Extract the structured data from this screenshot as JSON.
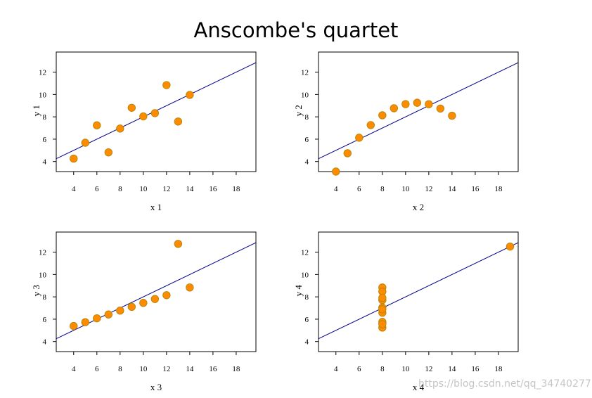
{
  "title": "Anscombe's quartet",
  "watermark": "https://blog.csdn.net/qq_34740277",
  "colors": {
    "point_fill": "#ff8c00",
    "point_stroke": "#b8860b",
    "line": "#00008b",
    "axes": "#000000"
  },
  "chart_data": [
    {
      "type": "scatter",
      "xlabel": "x 1",
      "ylabel": "y 1",
      "xlim": [
        2.5,
        19.7
      ],
      "ylim": [
        3.1,
        13.8
      ],
      "xticks": [
        4,
        6,
        8,
        10,
        12,
        14,
        16,
        18
      ],
      "yticks": [
        4,
        6,
        8,
        10,
        12
      ],
      "x": [
        10,
        8,
        13,
        9,
        11,
        14,
        6,
        4,
        12,
        7,
        5
      ],
      "y": [
        8.04,
        6.95,
        7.58,
        8.81,
        8.33,
        9.96,
        7.24,
        4.26,
        10.84,
        4.82,
        5.68
      ],
      "fit": {
        "intercept": 3.0,
        "slope": 0.5
      }
    },
    {
      "type": "scatter",
      "xlabel": "x 2",
      "ylabel": "y 2",
      "xlim": [
        2.5,
        19.7
      ],
      "ylim": [
        3.1,
        13.8
      ],
      "xticks": [
        4,
        6,
        8,
        10,
        12,
        14,
        16,
        18
      ],
      "yticks": [
        4,
        6,
        8,
        10,
        12
      ],
      "x": [
        10,
        8,
        13,
        9,
        11,
        14,
        6,
        4,
        12,
        7,
        5
      ],
      "y": [
        9.14,
        8.14,
        8.74,
        8.77,
        9.26,
        8.1,
        6.13,
        3.1,
        9.13,
        7.26,
        4.74
      ],
      "fit": {
        "intercept": 3.0,
        "slope": 0.5
      }
    },
    {
      "type": "scatter",
      "xlabel": "x 3",
      "ylabel": "y 3",
      "xlim": [
        2.5,
        19.7
      ],
      "ylim": [
        3.1,
        13.8
      ],
      "xticks": [
        4,
        6,
        8,
        10,
        12,
        14,
        16,
        18
      ],
      "yticks": [
        4,
        6,
        8,
        10,
        12
      ],
      "x": [
        10,
        8,
        13,
        9,
        11,
        14,
        6,
        4,
        12,
        7,
        5
      ],
      "y": [
        7.46,
        6.77,
        12.74,
        7.11,
        7.81,
        8.84,
        6.08,
        5.39,
        8.15,
        6.42,
        5.73
      ],
      "fit": {
        "intercept": 3.0,
        "slope": 0.5
      }
    },
    {
      "type": "scatter",
      "xlabel": "x 4",
      "ylabel": "y 4",
      "xlim": [
        2.5,
        19.7
      ],
      "ylim": [
        3.1,
        13.8
      ],
      "xticks": [
        4,
        6,
        8,
        10,
        12,
        14,
        16,
        18
      ],
      "yticks": [
        4,
        6,
        8,
        10,
        12
      ],
      "x": [
        8,
        8,
        8,
        8,
        8,
        8,
        8,
        19,
        8,
        8,
        8
      ],
      "y": [
        6.58,
        5.76,
        7.71,
        8.84,
        8.47,
        7.04,
        5.25,
        12.5,
        5.56,
        7.91,
        6.89
      ],
      "fit": {
        "intercept": 3.0,
        "slope": 0.5
      }
    }
  ]
}
